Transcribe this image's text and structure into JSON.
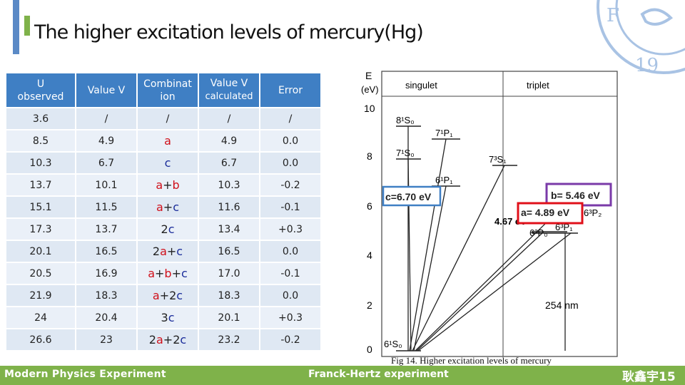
{
  "title": "The higher excitation levels of mercury(Hg)",
  "table": {
    "headers": [
      {
        "line1": "U",
        "line2": "observed"
      },
      {
        "line1": "Value V",
        "line2": ""
      },
      {
        "line1": "Combinat",
        "line2": "ion"
      },
      {
        "line1": "Value V",
        "line2": "calculated"
      },
      {
        "line1": "Error",
        "line2": ""
      }
    ],
    "rows": [
      [
        "3.6",
        "/",
        "/",
        "/",
        "/"
      ],
      [
        "8.5",
        "4.9",
        "a",
        "4.9",
        "0.0"
      ],
      [
        "10.3",
        "6.7",
        "c",
        "6.7",
        "0.0"
      ],
      [
        "13.7",
        "10.1",
        "a+b",
        "10.3",
        "-0.2"
      ],
      [
        "15.1",
        "11.5",
        "a+c",
        "11.6",
        "-0.1"
      ],
      [
        "17.3",
        "13.7",
        "2c",
        "13.4",
        "+0.3"
      ],
      [
        "20.1",
        "16.5",
        "2a+c",
        "16.5",
        "0.0"
      ],
      [
        "20.5",
        "16.9",
        "a+b+c",
        "17.0",
        "-0.1"
      ],
      [
        "21.9",
        "18.3",
        "a+2c",
        "18.3",
        "0.0"
      ],
      [
        "24",
        "20.4",
        "3c",
        "20.1",
        "+0.3"
      ],
      [
        "26.6",
        "23",
        "2a+2c",
        "23.2",
        "-0.2"
      ]
    ]
  },
  "diagram": {
    "y_label": "E",
    "y_unit": "(eV)",
    "y_ticks": [
      "10",
      "8",
      "6",
      "4",
      "2",
      "0"
    ],
    "col_singulet": "singulet",
    "col_triplet": "triplet",
    "levels": {
      "s81": "8¹S₀",
      "p71": "7¹P₁",
      "s71": "7¹S₀",
      "s73": "7³S₁",
      "p61": "6¹P₁",
      "p63_2": "6³P₂",
      "p63_1": "6³P₁",
      "p63_0": "6³P₀",
      "s61": "6¹S₀"
    },
    "label_c": "c=6.70 eV",
    "label_b": "b=  5.46 eV",
    "label_a": "a= 4.89 eV",
    "label_467": "4.67 eV",
    "label_254": "254 nm",
    "colors": {
      "c_box": "#3f7fc4",
      "a_box": "#e0101a",
      "b_box": "#7a3aa8"
    }
  },
  "caption": "Fig 14. Higher excitation levels of mercury",
  "footer": {
    "left": "Modern Physics Experiment",
    "center": "Franck-Hertz experiment",
    "right": "耿鑫宇15"
  },
  "colors": {
    "header_blue": "#3f7fc4",
    "accent_green": "#7fb24a",
    "accent_blue": "#5b8ac6"
  }
}
